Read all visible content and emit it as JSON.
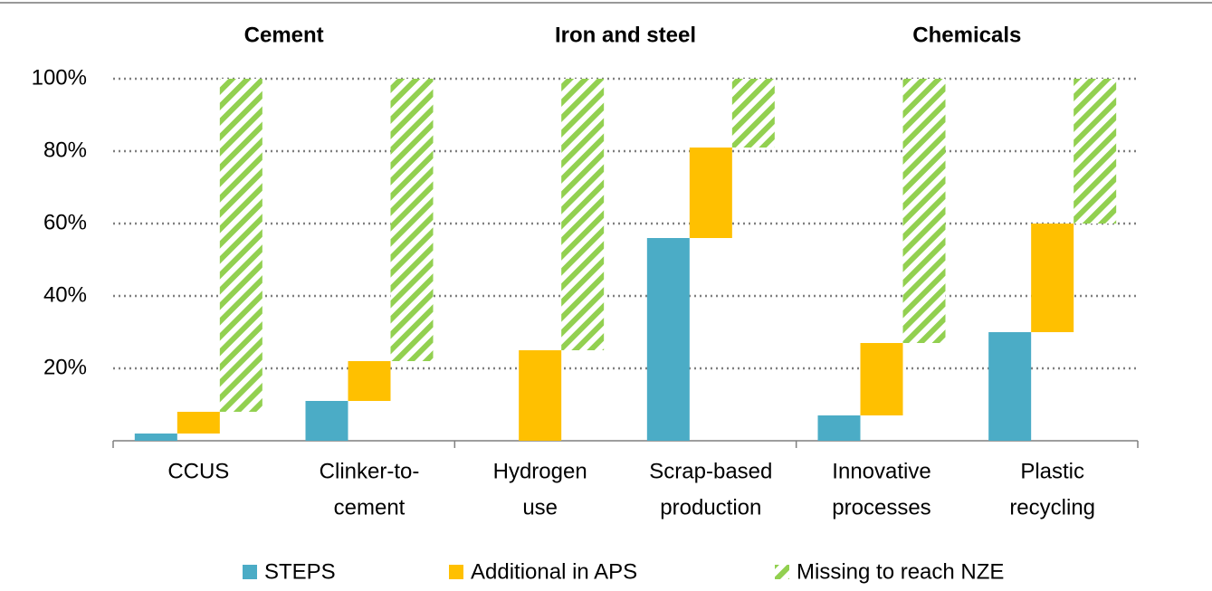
{
  "chart_data": {
    "type": "waterfall",
    "groups": [
      "Cement",
      "Iron and steel",
      "Chemicals"
    ],
    "categories": [
      [
        "CCUS"
      ],
      [
        "Clinker-to-",
        "cement"
      ],
      [
        "Hydrogen",
        "use"
      ],
      [
        "Scrap-based",
        "production"
      ],
      [
        "Innovative",
        "processes"
      ],
      [
        "Plastic",
        "recycling"
      ]
    ],
    "series": [
      {
        "name": "STEPS",
        "color": "#4bacc6",
        "values": [
          2,
          11,
          0,
          56,
          7,
          30
        ]
      },
      {
        "name": "Additional in APS",
        "color": "#ffc000",
        "values": [
          6,
          11,
          25,
          25,
          20,
          30
        ]
      },
      {
        "name": "Missing to reach NZE",
        "color": "#92d050",
        "pattern": "hatch",
        "values": [
          92,
          78,
          75,
          19,
          73,
          40
        ]
      }
    ],
    "ylim": [
      0,
      100
    ],
    "yticks": [
      {
        "value": 20,
        "label": "20%"
      },
      {
        "value": 40,
        "label": "40%"
      },
      {
        "value": 60,
        "label": "60%"
      },
      {
        "value": 80,
        "label": "80%"
      },
      {
        "value": 100,
        "label": "100%"
      }
    ],
    "grid": true
  }
}
